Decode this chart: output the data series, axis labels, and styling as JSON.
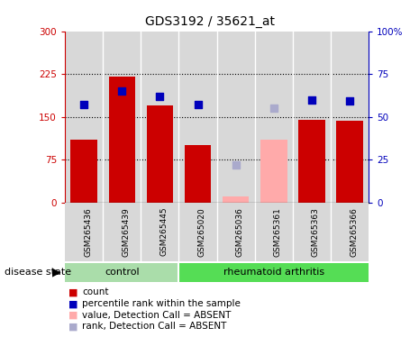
{
  "title": "GDS3192 / 35621_at",
  "samples": [
    "GSM265436",
    "GSM265439",
    "GSM265445",
    "GSM265020",
    "GSM265036",
    "GSM265361",
    "GSM265363",
    "GSM265366"
  ],
  "count_values": [
    110,
    220,
    170,
    100,
    10,
    110,
    145,
    143
  ],
  "count_absent": [
    false,
    false,
    false,
    false,
    true,
    true,
    false,
    false
  ],
  "percentile_values": [
    57,
    65,
    62,
    57,
    22,
    55,
    60,
    59
  ],
  "percentile_absent": [
    false,
    false,
    false,
    false,
    true,
    true,
    false,
    false
  ],
  "ctrl_indices": [
    0,
    1,
    2
  ],
  "ra_indices": [
    3,
    4,
    5,
    6,
    7
  ],
  "left_ylim": [
    0,
    300
  ],
  "right_ylim": [
    0,
    100
  ],
  "left_yticks": [
    0,
    75,
    150,
    225,
    300
  ],
  "left_yticklabels": [
    "0",
    "75",
    "150",
    "225",
    "300"
  ],
  "right_yticks": [
    0,
    25,
    50,
    75,
    100
  ],
  "right_yticklabels": [
    "0",
    "25",
    "50",
    "75",
    "100%"
  ],
  "bar_color_present": "#cc0000",
  "bar_color_absent": "#ffaaaa",
  "dot_color_present": "#0000bb",
  "dot_color_absent": "#aaaacc",
  "col_bg_color": "#d8d8d8",
  "plot_bg_color": "#ffffff",
  "dotted_lines": [
    75,
    150,
    225
  ],
  "ctrl_color": "#aaddaa",
  "ra_color": "#55dd55",
  "legend_items": [
    {
      "label": "count",
      "color": "#cc0000"
    },
    {
      "label": "percentile rank within the sample",
      "color": "#0000bb"
    },
    {
      "label": "value, Detection Call = ABSENT",
      "color": "#ffaaaa"
    },
    {
      "label": "rank, Detection Call = ABSENT",
      "color": "#aaaacc"
    }
  ]
}
